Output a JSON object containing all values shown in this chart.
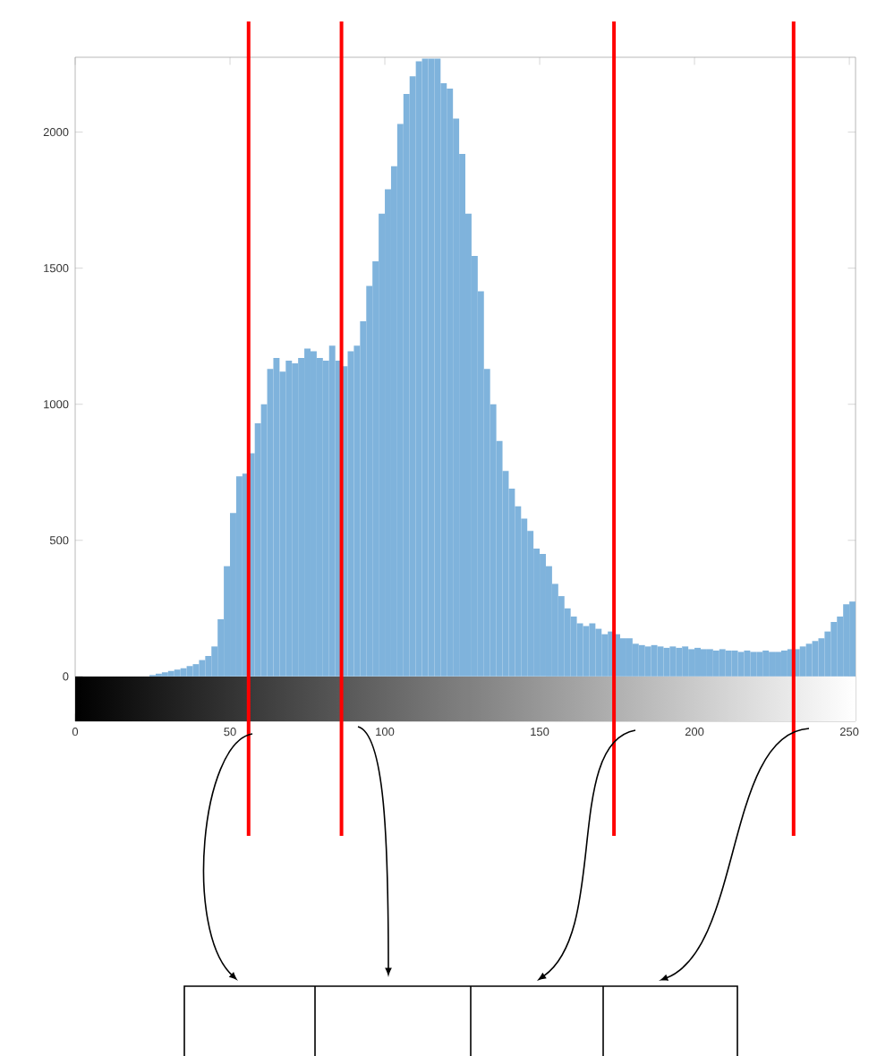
{
  "chart_data": {
    "type": "histogram",
    "bins": [
      0,
      2,
      4,
      6,
      8,
      10,
      12,
      14,
      16,
      18,
      20,
      22,
      24,
      26,
      28,
      30,
      32,
      34,
      36,
      38,
      40,
      42,
      44,
      46,
      48,
      50,
      52,
      54,
      56,
      58,
      60,
      62,
      64,
      66,
      68,
      70,
      72,
      74,
      76,
      78,
      80,
      82,
      84,
      86,
      88,
      90,
      92,
      94,
      96,
      98,
      100,
      102,
      104,
      106,
      108,
      110,
      112,
      114,
      116,
      118,
      120,
      122,
      124,
      126,
      128,
      130,
      132,
      134,
      136,
      138,
      140,
      142,
      144,
      146,
      148,
      150,
      152,
      154,
      156,
      158,
      160,
      162,
      164,
      166,
      168,
      170,
      172,
      174,
      176,
      178,
      180,
      182,
      184,
      186,
      188,
      190,
      192,
      194,
      196,
      198,
      200,
      202,
      204,
      206,
      208,
      210,
      212,
      214,
      216,
      218,
      220,
      222,
      224,
      226,
      228,
      230,
      232,
      234,
      236,
      238,
      240,
      242,
      244,
      246,
      248,
      250,
      252
    ],
    "values": [
      0,
      0,
      0,
      0,
      0,
      0,
      0,
      0,
      0,
      0,
      0,
      0,
      5,
      10,
      15,
      20,
      25,
      30,
      38,
      45,
      60,
      75,
      110,
      210,
      405,
      600,
      735,
      745,
      820,
      930,
      1000,
      1130,
      1170,
      1120,
      1160,
      1150,
      1170,
      1205,
      1195,
      1170,
      1160,
      1215,
      1160,
      1140,
      1195,
      1215,
      1305,
      1435,
      1525,
      1700,
      1790,
      1875,
      2030,
      2140,
      2205,
      2260,
      2270,
      2270,
      2270,
      2180,
      2160,
      2050,
      1920,
      1700,
      1545,
      1415,
      1130,
      1000,
      865,
      755,
      690,
      625,
      580,
      535,
      470,
      450,
      405,
      340,
      295,
      250,
      220,
      195,
      185,
      195,
      175,
      155,
      165,
      155,
      140,
      140,
      120,
      115,
      110,
      115,
      110,
      105,
      110,
      105,
      110,
      100,
      105,
      100,
      100,
      95,
      100,
      95,
      95,
      90,
      95,
      90,
      90,
      95,
      90,
      90,
      95,
      100,
      100,
      110,
      120,
      130,
      140,
      165,
      200,
      220,
      265,
      275
    ],
    "color": "#7fb3dc",
    "xlim": [
      0,
      252
    ],
    "ylim": [
      -165,
      2275
    ],
    "xticks": [
      0,
      50,
      100,
      150,
      200,
      250
    ],
    "yticks": [
      0,
      500,
      1000,
      1500,
      2000
    ],
    "bands": [
      {
        "axis": "y",
        "from": -165,
        "to": 0,
        "color": "#000000"
      }
    ],
    "ref_lines": [
      {
        "axis": "x",
        "value": 56,
        "color": "#ff0000"
      },
      {
        "axis": "x",
        "value": 86,
        "color": "#ff0000"
      },
      {
        "axis": "x",
        "value": 174,
        "color": "#ff0000"
      },
      {
        "axis": "x",
        "value": 232,
        "color": "#ff0000"
      }
    ]
  }
}
